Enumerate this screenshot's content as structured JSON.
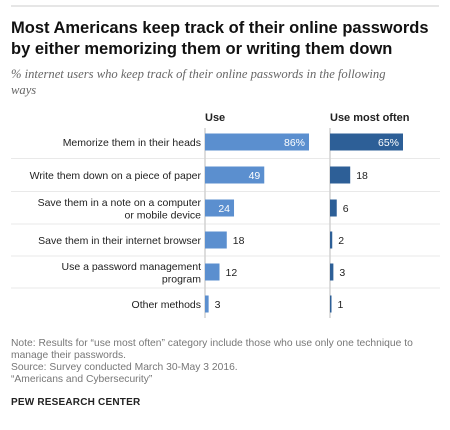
{
  "header": {
    "title_line1": "Most Americans keep track of their online passwords",
    "title_line2": "by either memorizing them or writing them down",
    "subtitle_line1": "% internet users who keep track of their online passwords in the following",
    "subtitle_line2": "ways"
  },
  "colors": {
    "use_bar": "#5b8fcf",
    "most_often_bar": "#2d5f97",
    "divider": "#d4d4d4",
    "axis": "#bbbbbb"
  },
  "chart_data": {
    "type": "bar",
    "title": "Most Americans keep track of their online passwords by either memorizing them or writing them down",
    "subtitle": "% internet users who keep track of their online passwords in the following ways",
    "categories": [
      [
        "Memorize them in their heads"
      ],
      [
        "Write them down on a piece of paper"
      ],
      [
        "Save them in a note on a computer",
        "or mobile device"
      ],
      [
        "Save them in their internet browser"
      ],
      [
        "Use a password management",
        "program"
      ],
      [
        "Other methods"
      ]
    ],
    "series": [
      {
        "name": "Use",
        "values": [
          86,
          49,
          24,
          18,
          12,
          3
        ],
        "labels": [
          "86%",
          "49",
          "24",
          "18",
          "12",
          "3"
        ]
      },
      {
        "name": "Use most often",
        "values": [
          65,
          18,
          6,
          2,
          3,
          1
        ],
        "labels": [
          "65%",
          "18",
          "6",
          "2",
          "3",
          "1"
        ]
      }
    ]
  },
  "notes": {
    "note_line1": "Note: Results for “use most often” category include those who use only one technique to",
    "note_line2": "manage their passwords.",
    "source": "Source: Survey conducted March 30-May 3 2016.",
    "report": "“Americans and Cybersecurity”",
    "org": "PEW RESEARCH CENTER"
  }
}
